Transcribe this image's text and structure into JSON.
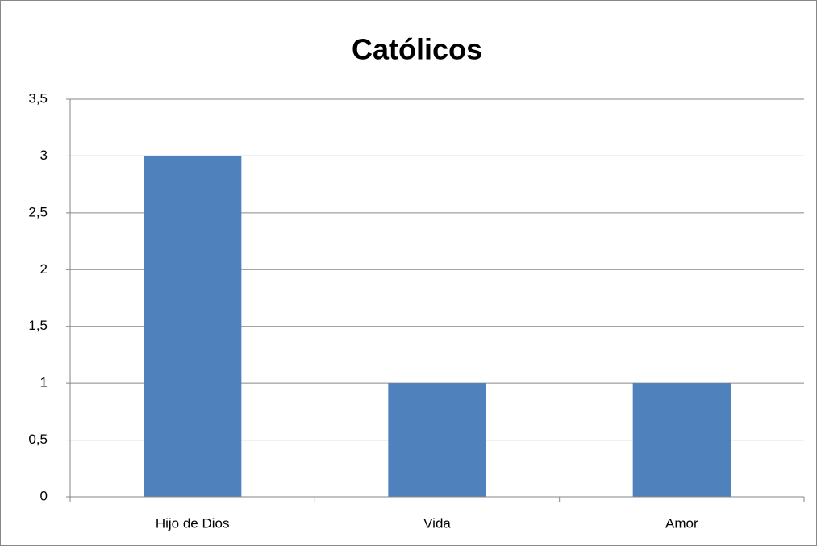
{
  "chart_data": {
    "type": "bar",
    "title": "Católicos",
    "categories": [
      "Hijo de Dios",
      "Vida",
      "Amor"
    ],
    "values": [
      3,
      1,
      1
    ],
    "color": "#4f81bd",
    "ylim": [
      0,
      3.5
    ],
    "yticks": [
      0,
      {
        "value": 0.5,
        "label": "0,5"
      },
      1,
      {
        "value": 1.5,
        "label": "1,5"
      },
      2,
      {
        "value": 2.5,
        "label": "2,5"
      },
      3,
      {
        "value": 3.5,
        "label": "3,5"
      }
    ],
    "grid": true
  }
}
